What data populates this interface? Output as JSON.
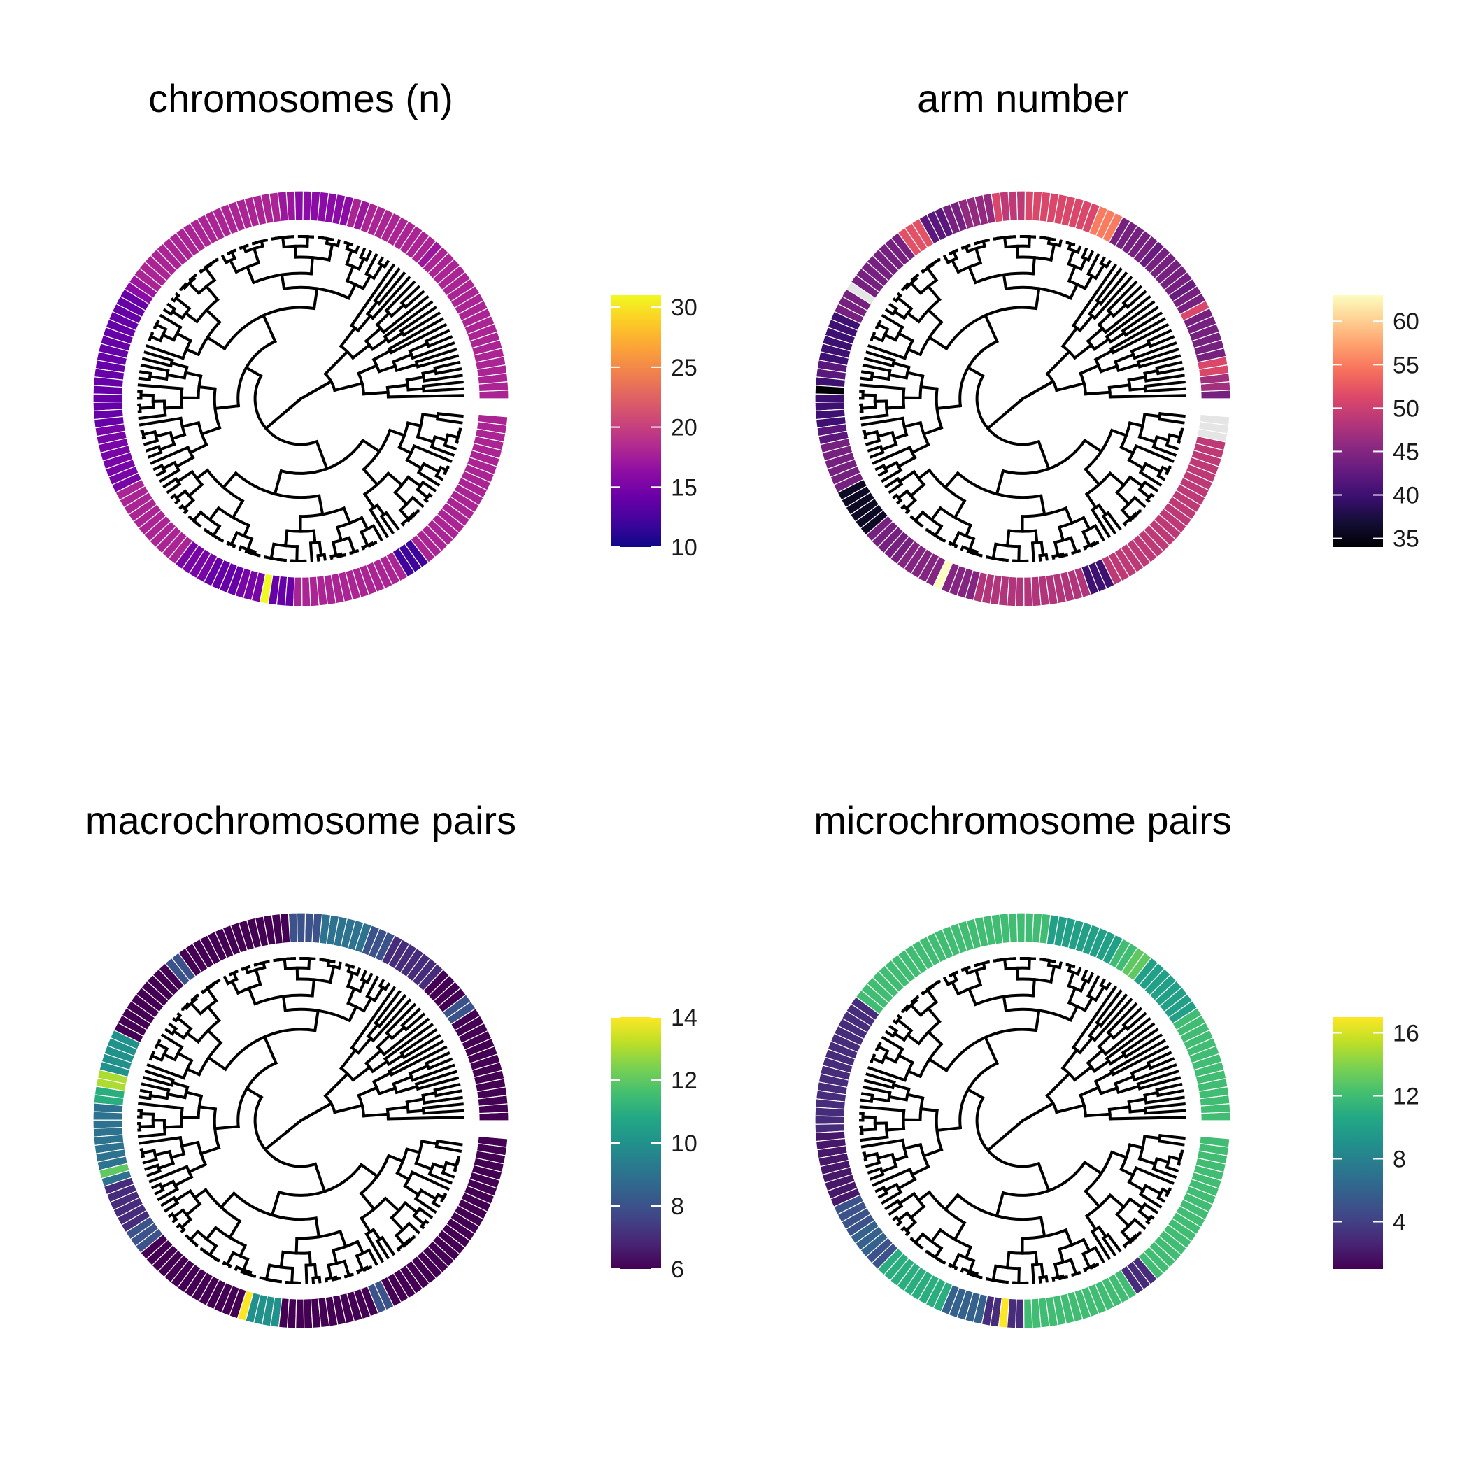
{
  "chart_data": [
    {
      "type": "circular-phylogeny-heatmap",
      "title": "chromosomes (n)",
      "palette": "plasma",
      "colorbar": {
        "min": 10,
        "max": 31,
        "ticks": [
          10,
          15,
          20,
          25,
          30
        ]
      },
      "grid": false,
      "legend_position": "right",
      "ring_values": [
        18,
        18,
        18,
        18,
        18,
        18,
        18,
        18,
        18,
        18,
        18,
        18,
        18,
        18,
        18,
        18,
        18,
        18,
        18,
        18,
        17,
        18,
        18,
        18,
        18,
        18,
        18,
        18,
        18,
        18,
        17,
        18,
        16,
        16,
        16,
        16,
        16,
        16,
        16,
        17,
        17,
        18,
        18,
        18,
        18,
        18,
        18,
        18,
        18,
        18,
        18,
        18,
        18,
        18,
        18,
        18,
        18,
        18,
        18,
        18,
        18,
        17,
        16,
        14,
        14,
        14,
        14,
        14,
        14,
        14,
        14,
        14,
        14,
        14,
        14,
        14,
        14,
        14,
        14,
        14,
        15,
        15,
        15,
        15,
        15,
        15,
        15,
        15,
        18,
        18,
        18,
        18,
        18,
        18,
        18,
        18,
        18,
        18,
        18,
        15,
        15,
        15,
        15,
        14,
        14,
        14,
        14,
        15,
        15,
        15,
        31,
        14,
        14,
        14,
        18,
        18,
        18,
        18,
        18,
        18,
        18,
        18,
        18,
        18,
        18,
        18,
        18,
        18,
        12,
        12,
        12,
        18,
        18,
        18,
        18,
        18,
        18,
        18,
        18,
        18,
        18,
        18,
        18,
        18,
        18,
        18,
        18,
        18,
        18,
        18,
        18
      ]
    },
    {
      "type": "circular-phylogeny-heatmap",
      "title": "arm number",
      "palette": "magma",
      "colorbar": {
        "min": 34,
        "max": 63,
        "ticks": [
          35,
          40,
          45,
          50,
          55,
          60
        ]
      },
      "grid": false,
      "legend_position": "right",
      "missing_value_color": "#e5e5e5",
      "ring_values": [
        44,
        47,
        47,
        51,
        51,
        44,
        44,
        44,
        44,
        44,
        44,
        51,
        44,
        44,
        43,
        44,
        44,
        44,
        44,
        44,
        43,
        44,
        44,
        44,
        44,
        44,
        55,
        55,
        55,
        51,
        51,
        51,
        51,
        51,
        51,
        51,
        51,
        51,
        49,
        49,
        49,
        51,
        46,
        46,
        46,
        46,
        44,
        44,
        42,
        42,
        42,
        52,
        52,
        52,
        44,
        44,
        44,
        44,
        44,
        44,
        44,
        44,
        null,
        44,
        44,
        44,
        40,
        40,
        40,
        40,
        40,
        40,
        42,
        42,
        40,
        34,
        40,
        40,
        40,
        40,
        42,
        42,
        44,
        44,
        44,
        44,
        44,
        44,
        36,
        36,
        36,
        36,
        36,
        36,
        44,
        44,
        44,
        44,
        44,
        45,
        45,
        45,
        45,
        45,
        63,
        45,
        45,
        45,
        45,
        48,
        48,
        48,
        48,
        48,
        48,
        48,
        48,
        48,
        48,
        48,
        48,
        48,
        48,
        40,
        40,
        40,
        49,
        49,
        49,
        49,
        49,
        49,
        49,
        49,
        49,
        49,
        49,
        49,
        49,
        49,
        49,
        49,
        49,
        49,
        49,
        49,
        49,
        49,
        null,
        null,
        null
      ]
    },
    {
      "type": "circular-phylogeny-heatmap",
      "title": "macrochromosome pairs",
      "palette": "viridis",
      "colorbar": {
        "min": 6,
        "max": 14,
        "ticks": [
          6,
          8,
          10,
          12,
          14
        ]
      },
      "grid": false,
      "legend_position": "right",
      "ring_values": [
        6,
        6,
        6,
        6,
        6,
        6,
        6,
        6,
        6,
        6,
        6,
        6,
        6,
        6,
        8,
        8,
        6,
        6,
        6,
        6,
        7,
        7,
        7,
        7,
        7,
        7,
        7,
        8,
        8,
        8,
        9,
        9,
        9,
        9,
        9,
        9,
        8,
        8,
        8,
        8,
        6,
        6,
        6,
        6,
        6,
        6,
        6,
        6,
        6,
        6,
        6,
        6,
        6,
        6,
        8,
        8,
        6,
        6,
        6,
        6,
        6,
        6,
        6,
        6,
        6,
        6,
        10,
        10,
        10,
        10,
        10,
        13,
        13,
        11,
        11,
        9,
        9,
        9,
        9,
        9,
        9,
        9,
        9,
        12,
        9,
        7,
        7,
        7,
        7,
        7,
        7,
        8,
        8,
        8,
        6,
        6,
        6,
        6,
        6,
        6,
        6,
        6,
        6,
        6,
        6,
        6,
        6,
        6,
        14,
        10,
        10,
        10,
        10,
        6,
        6,
        6,
        6,
        6,
        6,
        6,
        6,
        6,
        6,
        6,
        6,
        8,
        8,
        6,
        6,
        6,
        6,
        6,
        6,
        6,
        6,
        6,
        6,
        6,
        6,
        6,
        6,
        6,
        6,
        6,
        6,
        6,
        6,
        6,
        6,
        6,
        6,
        6
      ]
    },
    {
      "type": "circular-phylogeny-heatmap",
      "title": "microchromosome pairs",
      "palette": "viridis",
      "colorbar": {
        "min": 1,
        "max": 17,
        "ticks": [
          4,
          8,
          12,
          16
        ]
      },
      "grid": false,
      "legend_position": "right",
      "ring_values": [
        12,
        12,
        12,
        12,
        12,
        12,
        12,
        12,
        12,
        12,
        12,
        12,
        12,
        12,
        10,
        10,
        10,
        10,
        10,
        10,
        10,
        10,
        13,
        13,
        12,
        12,
        10,
        10,
        10,
        10,
        10,
        10,
        10,
        10,
        10,
        12,
        12,
        12,
        12,
        12,
        12,
        12,
        12,
        12,
        12,
        12,
        12,
        12,
        12,
        12,
        12,
        12,
        12,
        12,
        12,
        12,
        12,
        12,
        12,
        12,
        12,
        3,
        3,
        3,
        3,
        3,
        3,
        3,
        3,
        3,
        3,
        3,
        3,
        3,
        3,
        3,
        3,
        3,
        2,
        2,
        2,
        2,
        2,
        2,
        2,
        2,
        2,
        5,
        5,
        5,
        5,
        6,
        6,
        6,
        5,
        5,
        11,
        11,
        11,
        11,
        11,
        11,
        11,
        11,
        11,
        6,
        6,
        6,
        6,
        6,
        3,
        3,
        17,
        3,
        3,
        12,
        12,
        12,
        12,
        12,
        12,
        12,
        12,
        12,
        12,
        12,
        12,
        12,
        12,
        3,
        3,
        3,
        12,
        12,
        12,
        12,
        12,
        12,
        12,
        12,
        12,
        12,
        12,
        12,
        12,
        12,
        12,
        12,
        12,
        12,
        12
      ]
    }
  ]
}
